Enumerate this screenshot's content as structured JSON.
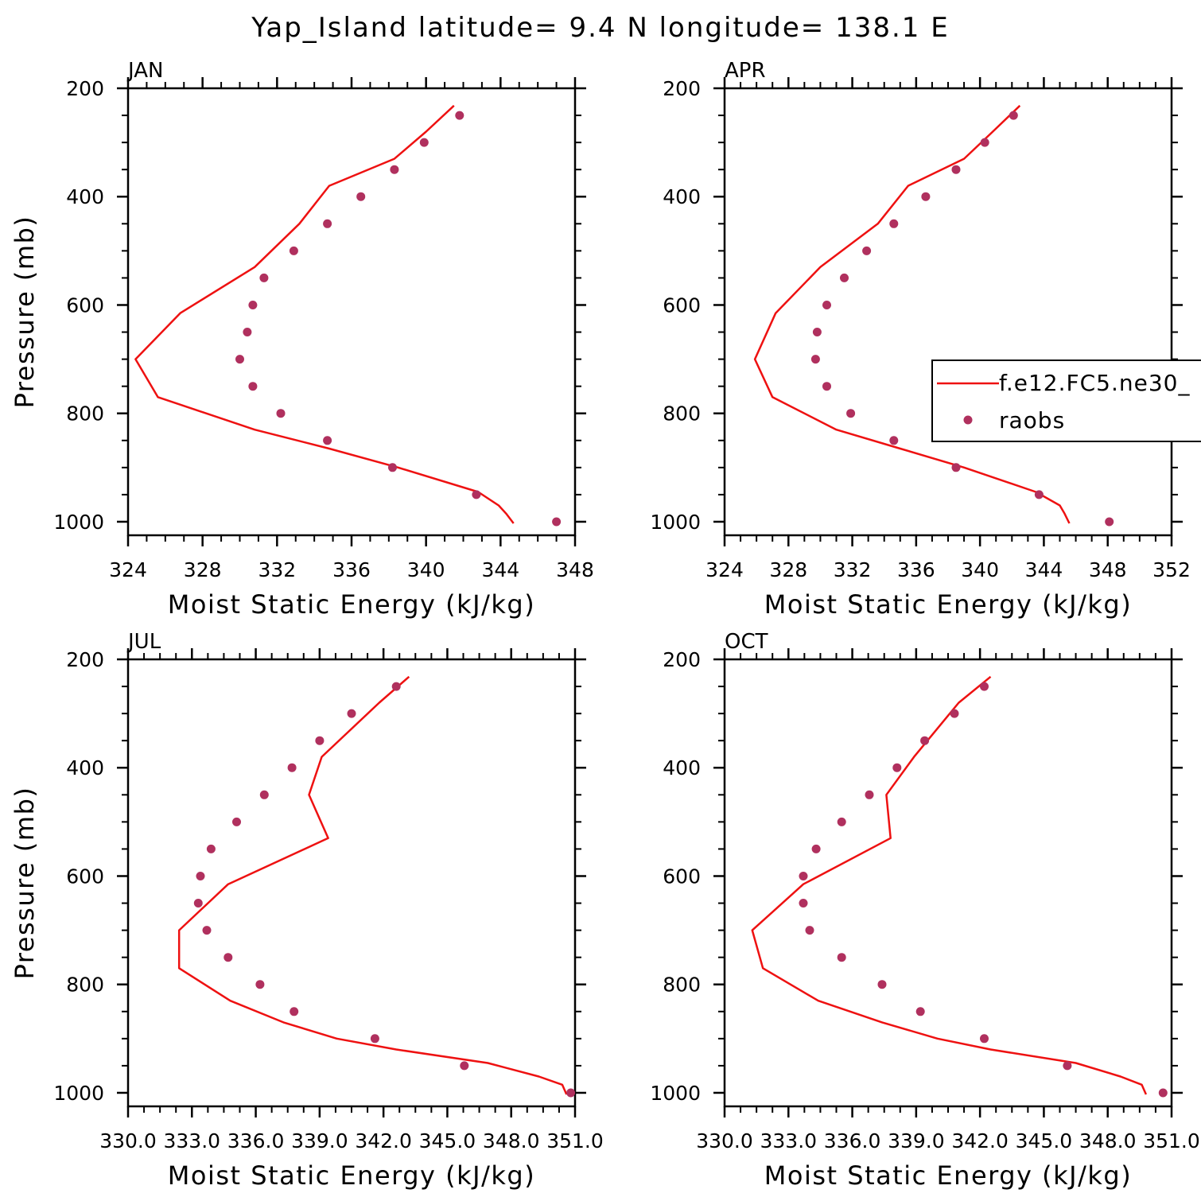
{
  "figure": {
    "title": "Yap_Island  latitude= 9.4 N longitude= 138.1 E"
  },
  "legend": {
    "entries": [
      "f.e12.FC5.ne30_",
      "raobs"
    ],
    "placement": "right-middle, inside APR panel (clipped at right edge)"
  },
  "colors": {
    "model_line": "#ee1111",
    "obs_markers": "#b0305e",
    "axes": "#000000"
  },
  "chart_data": [
    {
      "type": "line",
      "panel": "JAN",
      "title": "JAN",
      "xlabel": "Moist Static Energy (kJ/kg)",
      "ylabel": "Pressure (mb)",
      "xlim": [
        324,
        348
      ],
      "ylim": [
        1025,
        200
      ],
      "y_inverted": true,
      "xticks": [
        324,
        328,
        332,
        336,
        340,
        344,
        348
      ],
      "xtick_labels": [
        "324",
        "328",
        "332",
        "336",
        "340",
        "344",
        "348"
      ],
      "yticks": [
        200,
        400,
        600,
        800,
        1000
      ],
      "ytick_labels": [
        "200",
        "400",
        "600",
        "800",
        "1000"
      ],
      "series": [
        {
          "name": "f.e12.FC5.ne30_",
          "style": "line",
          "x": [
            341.5,
            340.0,
            338.3,
            334.8,
            333.2,
            330.8,
            326.8,
            324.4,
            325.6,
            330.8,
            334.8,
            338.5,
            342.8,
            343.9,
            344.3,
            344.7
          ],
          "y": [
            232,
            280,
            330,
            380,
            450,
            530,
            615,
            700,
            770,
            830,
            865,
            900,
            945,
            970,
            985,
            1003
          ]
        },
        {
          "name": "raobs",
          "style": "markers",
          "x": [
            341.8,
            339.9,
            338.3,
            336.5,
            334.7,
            332.9,
            331.3,
            330.7,
            330.4,
            330.0,
            330.7,
            332.2,
            334.7,
            338.2,
            342.7,
            347.0
          ],
          "y": [
            250,
            300,
            350,
            400,
            450,
            500,
            550,
            600,
            650,
            700,
            750,
            800,
            850,
            900,
            950,
            1000
          ]
        }
      ]
    },
    {
      "type": "line",
      "panel": "APR",
      "title": "APR",
      "xlabel": "Moist Static Energy (kJ/kg)",
      "ylabel": "",
      "xlim": [
        324,
        352
      ],
      "ylim": [
        1025,
        200
      ],
      "y_inverted": true,
      "xticks": [
        324,
        328,
        332,
        336,
        340,
        344,
        348,
        352
      ],
      "xtick_labels": [
        "324",
        "328",
        "332",
        "336",
        "340",
        "344",
        "348",
        "352"
      ],
      "yticks": [
        200,
        400,
        600,
        800,
        1000
      ],
      "ytick_labels": [
        "200",
        "400",
        "600",
        "800",
        "1000"
      ],
      "series": [
        {
          "name": "f.e12.FC5.ne30_",
          "style": "line",
          "x": [
            342.5,
            340.8,
            339.0,
            335.5,
            333.6,
            330.0,
            327.2,
            325.9,
            327.0,
            331.0,
            335.0,
            339.0,
            343.5,
            345.0,
            345.3,
            345.6
          ],
          "y": [
            232,
            280,
            330,
            380,
            450,
            530,
            615,
            700,
            770,
            830,
            865,
            900,
            945,
            970,
            985,
            1003
          ]
        },
        {
          "name": "raobs",
          "style": "markers",
          "x": [
            342.1,
            340.3,
            338.5,
            336.6,
            334.6,
            332.9,
            331.5,
            330.4,
            329.8,
            329.7,
            330.4,
            331.9,
            334.6,
            338.5,
            343.7,
            348.1
          ],
          "y": [
            250,
            300,
            350,
            400,
            450,
            500,
            550,
            600,
            650,
            700,
            750,
            800,
            850,
            900,
            950,
            1000
          ]
        }
      ]
    },
    {
      "type": "line",
      "panel": "JUL",
      "title": "JUL",
      "xlabel": "Moist Static Energy (kJ/kg)",
      "ylabel": "Pressure (mb)",
      "xlim": [
        330.0,
        351.0
      ],
      "ylim": [
        1025,
        200
      ],
      "y_inverted": true,
      "xticks": [
        330.0,
        333.0,
        336.0,
        339.0,
        342.0,
        345.0,
        348.0,
        351.0
      ],
      "xtick_labels": [
        "330.0",
        "333.0",
        "336.0",
        "339.0",
        "342.0",
        "345.0",
        "348.0",
        "351.0"
      ],
      "yticks": [
        200,
        400,
        600,
        800,
        1000
      ],
      "ytick_labels": [
        "200",
        "400",
        "600",
        "800",
        "1000"
      ],
      "series": [
        {
          "name": "f.e12.FC5.ne30_",
          "style": "line",
          "x": [
            343.2,
            341.8,
            339.1,
            338.5,
            339.4,
            334.7,
            332.4,
            332.4,
            334.8,
            337.3,
            339.8,
            342.6,
            346.9,
            349.3,
            350.4,
            350.6
          ],
          "y": [
            232,
            280,
            380,
            450,
            530,
            615,
            700,
            770,
            830,
            870,
            900,
            920,
            945,
            970,
            985,
            1003
          ]
        },
        {
          "name": "raobs",
          "style": "markers",
          "x": [
            342.6,
            340.5,
            339.0,
            337.7,
            336.4,
            335.1,
            333.9,
            333.4,
            333.3,
            333.7,
            334.7,
            336.2,
            337.8,
            341.6,
            345.8,
            350.8
          ],
          "y": [
            250,
            300,
            350,
            400,
            450,
            500,
            550,
            600,
            650,
            700,
            750,
            800,
            850,
            900,
            950,
            1000
          ]
        }
      ]
    },
    {
      "type": "line",
      "panel": "OCT",
      "title": "OCT",
      "xlabel": "Moist Static Energy (kJ/kg)",
      "ylabel": "",
      "xlim": [
        330.0,
        351.0
      ],
      "ylim": [
        1025,
        200
      ],
      "y_inverted": true,
      "xticks": [
        330.0,
        333.0,
        336.0,
        339.0,
        342.0,
        345.0,
        348.0,
        351.0
      ],
      "xtick_labels": [
        "330.0",
        "333.0",
        "336.0",
        "339.0",
        "342.0",
        "345.0",
        "348.0",
        "351.0"
      ],
      "yticks": [
        200,
        400,
        600,
        800,
        1000
      ],
      "ytick_labels": [
        "200",
        "400",
        "600",
        "800",
        "1000"
      ],
      "series": [
        {
          "name": "f.e12.FC5.ne30_",
          "style": "line",
          "x": [
            342.5,
            341.0,
            338.9,
            337.6,
            337.8,
            333.7,
            331.3,
            331.8,
            334.4,
            337.4,
            340.0,
            342.5,
            346.5,
            348.6,
            349.6,
            349.8
          ],
          "y": [
            232,
            280,
            380,
            450,
            530,
            615,
            700,
            770,
            830,
            870,
            900,
            920,
            945,
            970,
            985,
            1003
          ]
        },
        {
          "name": "raobs",
          "style": "markers",
          "x": [
            342.2,
            340.8,
            339.4,
            338.1,
            336.8,
            335.5,
            334.3,
            333.7,
            333.7,
            334.0,
            335.5,
            337.4,
            339.2,
            342.2,
            346.1,
            350.6
          ],
          "y": [
            250,
            300,
            350,
            400,
            450,
            500,
            550,
            600,
            650,
            700,
            750,
            800,
            850,
            900,
            950,
            1000
          ]
        }
      ]
    }
  ]
}
